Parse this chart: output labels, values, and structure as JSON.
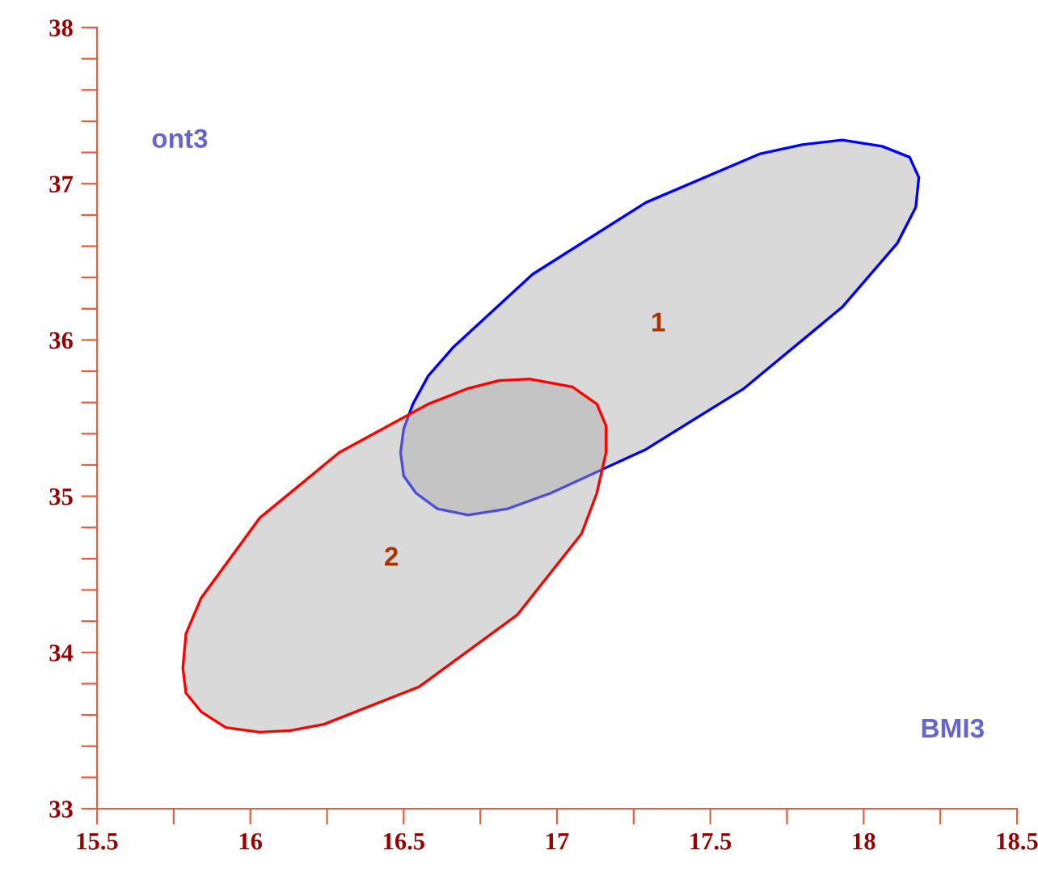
{
  "chart_data": {
    "type": "area",
    "xlabel": "BMI3",
    "ylabel": "ont3",
    "xlim": [
      15.5,
      18.5
    ],
    "ylim": [
      33,
      38
    ],
    "xticks": [
      15.5,
      {
        "value": 15.75,
        "label": null
      },
      16,
      {
        "value": 16.25,
        "label": null
      },
      16.5,
      {
        "value": 16.75,
        "label": null
      },
      17,
      {
        "value": 17.25,
        "label": null
      },
      17.5,
      {
        "value": 17.75,
        "label": null
      },
      18,
      {
        "value": 18.25,
        "label": null
      },
      18.5
    ],
    "yticks": [
      33,
      {
        "value": 33.2,
        "label": null
      },
      {
        "value": 33.4,
        "label": null
      },
      {
        "value": 33.6,
        "label": null
      },
      {
        "value": 33.8,
        "label": null
      },
      34,
      {
        "value": 34.2,
        "label": null
      },
      {
        "value": 34.4,
        "label": null
      },
      {
        "value": 34.6,
        "label": null
      },
      {
        "value": 34.8,
        "label": null
      },
      35,
      {
        "value": 35.2,
        "label": null
      },
      {
        "value": 35.4,
        "label": null
      },
      {
        "value": 35.6,
        "label": null
      },
      {
        "value": 35.8,
        "label": null
      },
      36,
      {
        "value": 36.2,
        "label": null
      },
      {
        "value": 36.4,
        "label": null
      },
      {
        "value": 36.6,
        "label": null
      },
      {
        "value": 36.8,
        "label": null
      },
      37,
      {
        "value": 37.2,
        "label": null
      },
      {
        "value": 37.4,
        "label": null
      },
      {
        "value": 37.6,
        "label": null
      },
      {
        "value": 37.8,
        "label": null
      },
      38
    ],
    "grid": false,
    "legend": false,
    "marker": "none",
    "line_style": "solid",
    "series": [
      {
        "color": "#0000ff",
        "x": [
          18.18,
          18.15,
          18.06,
          17.93,
          17.8,
          17.66,
          17.29,
          16.92,
          16.66,
          16.58,
          16.53,
          16.5,
          16.49,
          16.5,
          16.54,
          16.61,
          16.71,
          16.84,
          16.98,
          17.29,
          17.61,
          17.93,
          18.11,
          18.17,
          18.18
        ],
        "values": [
          37.04,
          37.17,
          37.24,
          37.28,
          37.25,
          37.19,
          36.88,
          36.42,
          35.95,
          35.77,
          35.59,
          35.43,
          35.28,
          35.13,
          35.02,
          34.92,
          34.88,
          34.92,
          35.02,
          35.3,
          35.69,
          36.21,
          36.62,
          36.85,
          37.04
        ]
      },
      {
        "color": "#ff0000",
        "x": [
          16.91,
          17.05,
          17.13,
          17.16,
          17.16,
          17.13,
          17.08,
          16.87,
          16.55,
          16.24,
          16.13,
          16.03,
          15.92,
          15.84,
          15.79,
          15.78,
          15.79,
          15.84,
          16.03,
          16.29,
          16.58,
          16.71,
          16.81,
          16.91
        ],
        "values": [
          35.75,
          35.7,
          35.59,
          35.45,
          35.28,
          35.02,
          34.76,
          34.24,
          33.78,
          33.54,
          33.5,
          33.49,
          33.52,
          33.62,
          33.74,
          33.9,
          34.12,
          34.35,
          34.86,
          35.28,
          35.59,
          35.69,
          35.74,
          35.75
        ]
      }
    ],
    "annotations": [
      "1",
      "2"
    ]
  }
}
